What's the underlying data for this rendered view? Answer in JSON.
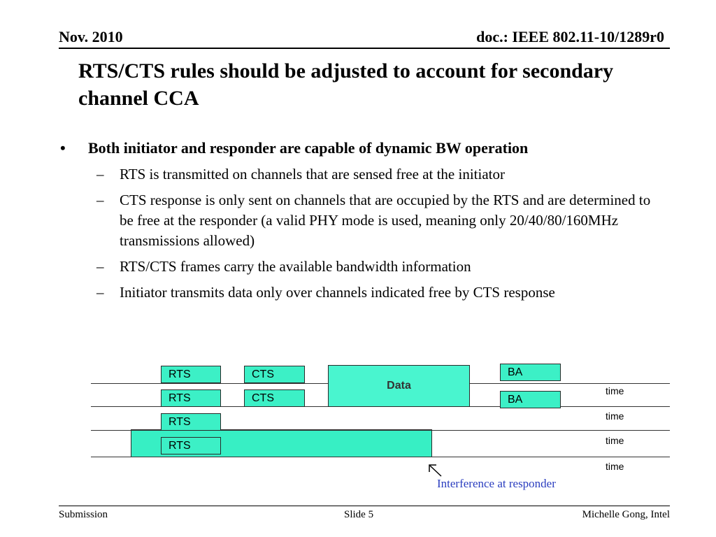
{
  "header": {
    "date": "Nov. 2010",
    "doc_id": "doc.: IEEE 802.11-10/1289r0"
  },
  "title": "RTS/CTS rules should be adjusted to account for secondary channel CCA",
  "bullets": {
    "main": "Both initiator and responder are capable of dynamic  BW operation",
    "subs": [
      "RTS is transmitted on channels that are sensed free at the initiator",
      "CTS response is only sent on channels that are occupied by the RTS and are determined to be free at the responder (a valid PHY mode is used, meaning only 20/40/80/160MHz transmissions allowed)",
      "RTS/CTS frames carry the available bandwidth information",
      "Initiator transmits data only over channels indicated free by CTS response"
    ]
  },
  "diagram": {
    "rts": "RTS",
    "cts": "CTS",
    "data": "Data",
    "ba": "BA",
    "time": "time",
    "interference_label": "Interference at responder",
    "colors": {
      "frame": "#3cf0c6",
      "label": "#2a3dbf"
    }
  },
  "footer": {
    "left": "Submission",
    "center": "Slide 5",
    "right": "Michelle Gong, Intel"
  }
}
